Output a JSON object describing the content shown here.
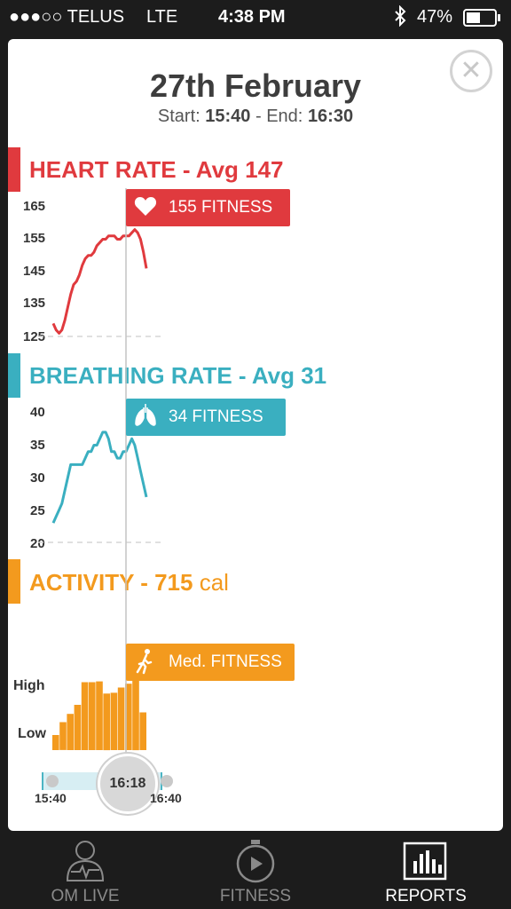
{
  "status_bar": {
    "carrier": "●●●○○ TELUS",
    "network": "LTE",
    "time": "4:38 PM",
    "battery": "47%"
  },
  "header": {
    "date": "27th February",
    "start_label": "Start:",
    "start": "15:40",
    "sep": "-",
    "end_label": "End:",
    "end": "16:30"
  },
  "heart": {
    "title": "HEART RATE - Avg 147",
    "badge": "155 FITNESS",
    "color": "#e03a3e",
    "ticks": [
      "165",
      "155",
      "145",
      "135",
      "125"
    ]
  },
  "breathing": {
    "title": "BREATHING RATE - Avg 31",
    "badge": "34 FITNESS",
    "color": "#3aafc0",
    "ticks": [
      "40",
      "35",
      "30",
      "25",
      "20"
    ]
  },
  "activity": {
    "title": "ACTIVITY - 715",
    "unit": "cal",
    "badge": "Med. FITNESS",
    "color": "#f39a1e",
    "high": "High",
    "low": "Low"
  },
  "slider": {
    "current": "16:18",
    "start": "15:40",
    "end": "16:40"
  },
  "tabs": [
    {
      "label": "OM LIVE",
      "icon": "person-heart-icon",
      "active": false
    },
    {
      "label": "FITNESS",
      "icon": "stopwatch-play-icon",
      "active": false
    },
    {
      "label": "REPORTS",
      "icon": "bar-chart-icon",
      "active": true
    }
  ],
  "chart_data": [
    {
      "type": "line",
      "title": "HEART RATE - Avg 147",
      "ylim": [
        125,
        165
      ],
      "series": [
        {
          "values": [
            129,
            127,
            126,
            127,
            130,
            134,
            138,
            141,
            142,
            144,
            147,
            149,
            150,
            150,
            151,
            153,
            154,
            155,
            155,
            156,
            156,
            156,
            155,
            155,
            156,
            156,
            156,
            157,
            158,
            157,
            155,
            151,
            146
          ]
        }
      ]
    },
    {
      "type": "line",
      "title": "BREATHING RATE - Avg 31",
      "ylim": [
        20,
        40
      ],
      "series": [
        {
          "values": [
            23,
            24,
            25,
            26,
            28,
            30,
            32,
            32,
            32,
            32,
            32,
            33,
            34,
            34,
            35,
            35,
            36,
            37,
            37,
            36,
            34,
            34,
            33,
            33,
            34,
            34,
            35,
            36,
            35,
            33,
            31,
            29,
            27
          ]
        }
      ]
    },
    {
      "type": "bar",
      "title": "ACTIVITY - 715 cal",
      "values": [
        0.2,
        0.37,
        0.48,
        0.6,
        0.9,
        0.9,
        0.91,
        0.75,
        0.76,
        0.83,
        0.88,
        0.95,
        0.5
      ]
    }
  ]
}
